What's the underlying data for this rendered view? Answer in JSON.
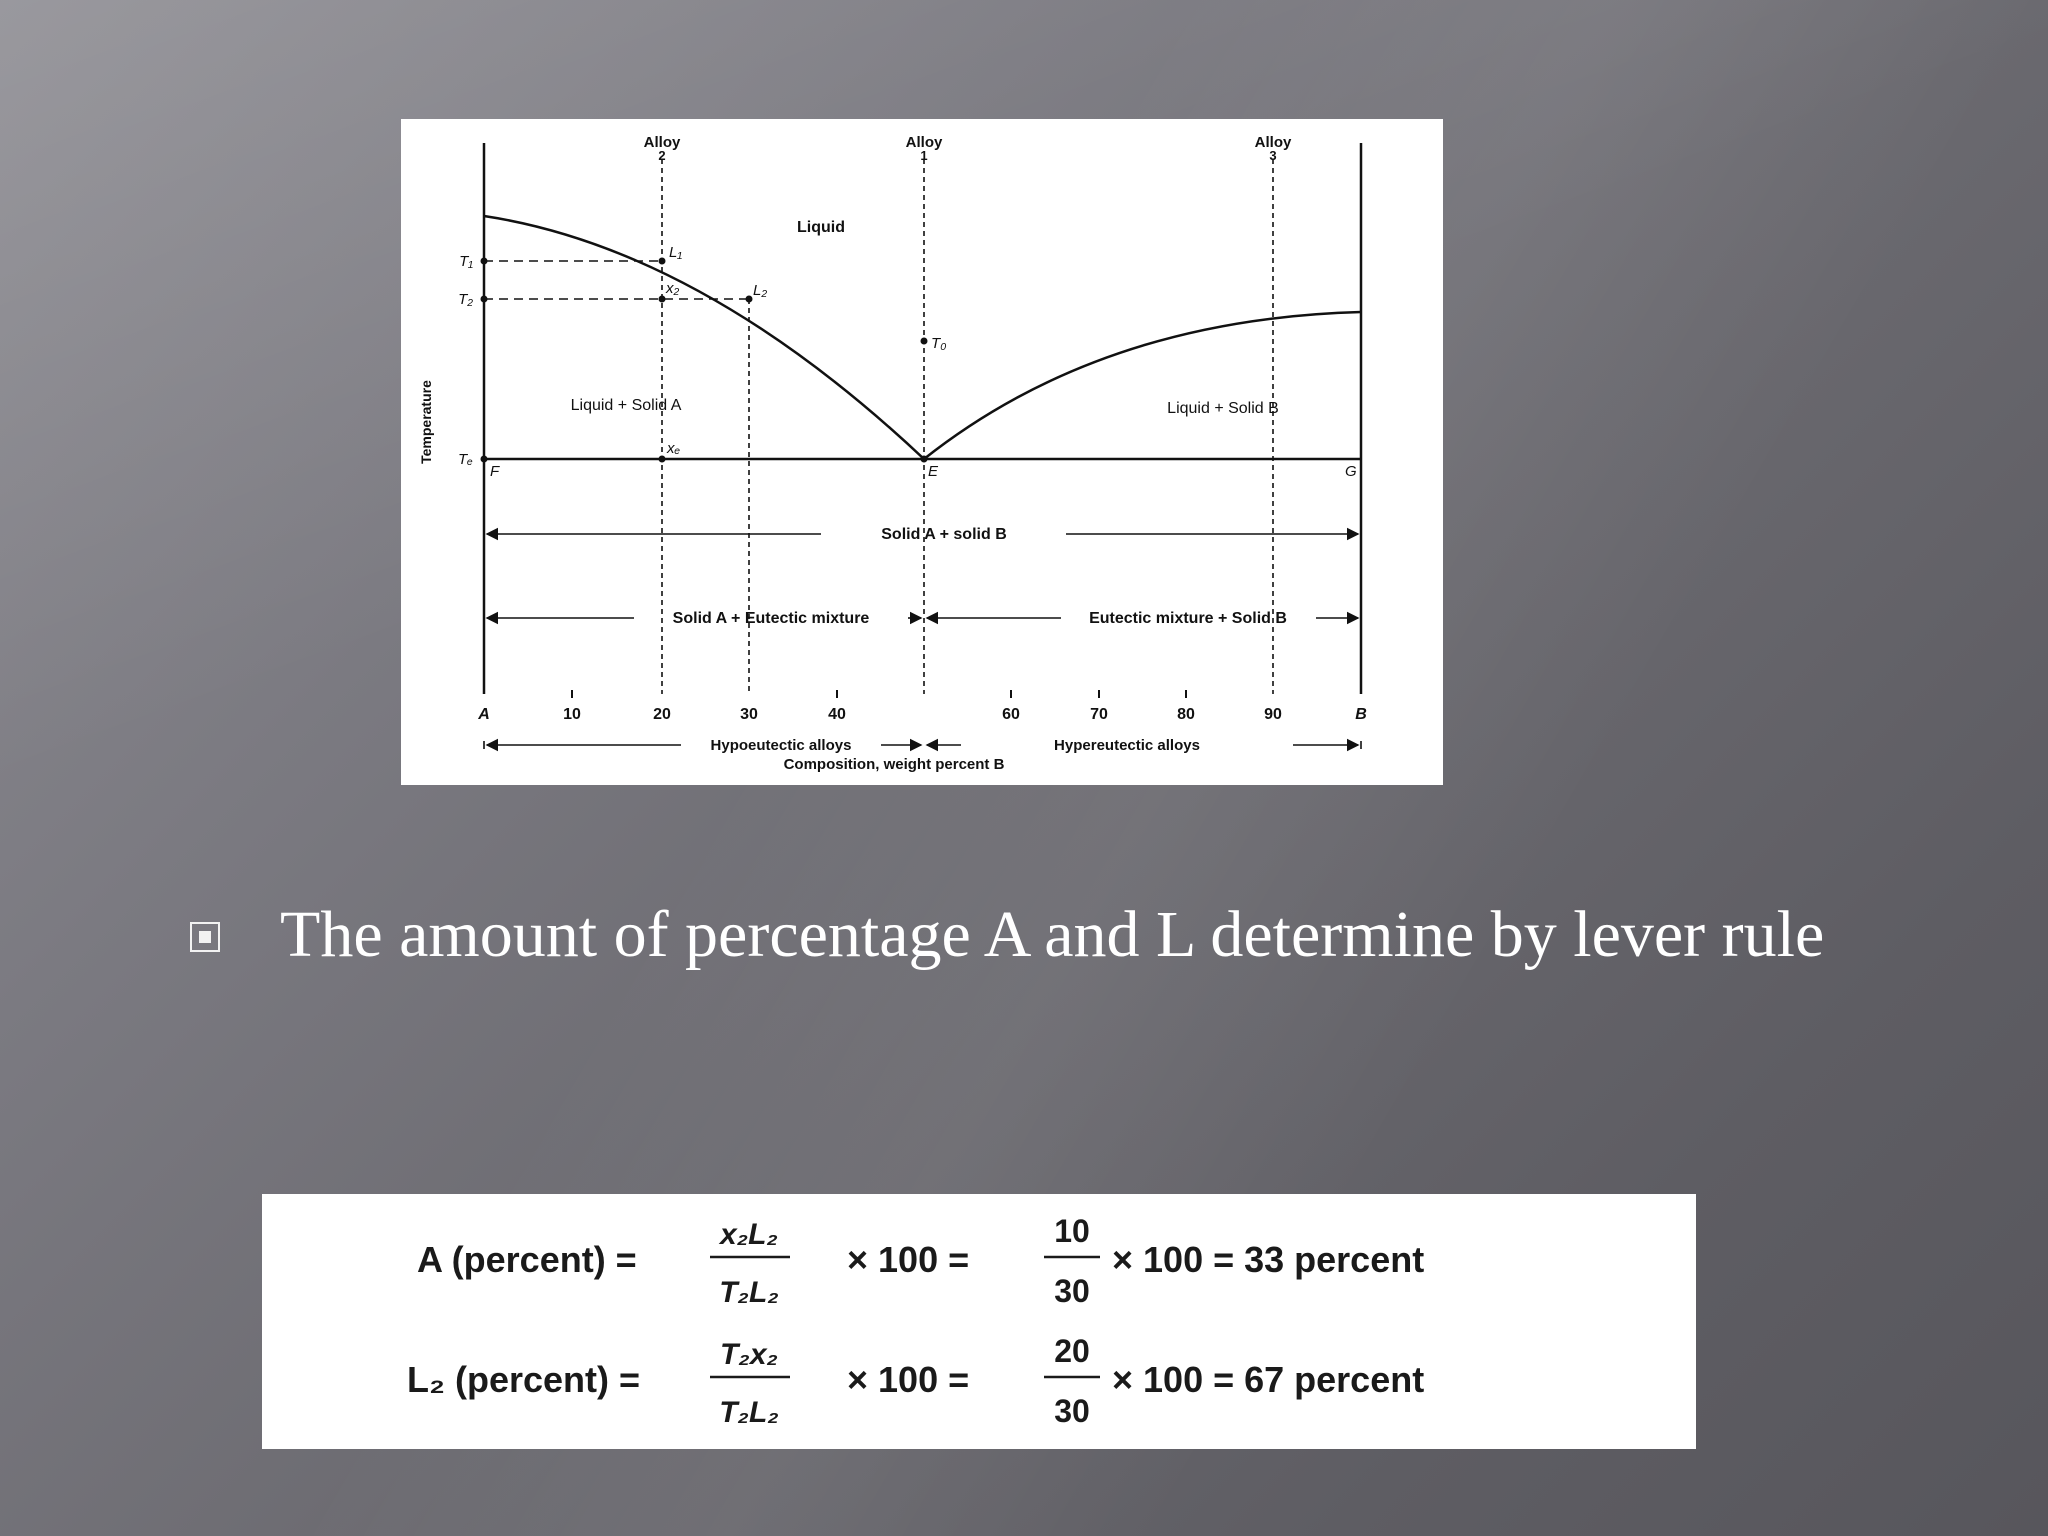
{
  "diagram": {
    "alloy_labels": [
      {
        "word": "Alloy",
        "num": "2"
      },
      {
        "word": "Alloy",
        "num": "1"
      },
      {
        "word": "Alloy",
        "num": "3"
      }
    ],
    "y_axis_label": "Temperature",
    "temp_labels": {
      "t1": "T₁",
      "t2": "T₂",
      "te": "Tₑ"
    },
    "region_labels": {
      "liquid": "Liquid",
      "liquid_solid_a": "Liquid + Solid A",
      "liquid_solid_b": "Liquid + Solid B",
      "solid_a_solid_b": "Solid A + solid B",
      "solid_a_eutectic": "Solid A + Eutectic mixture",
      "eutectic_solid_b": "Eutectic mixture + Solid B"
    },
    "point_labels": {
      "l1": "L₁",
      "x2": "x₂",
      "l2": "L₂",
      "to": "T₀",
      "xe": "xₑ",
      "f": "F",
      "e": "E",
      "g": "G"
    },
    "x_ticks": [
      "A",
      "10",
      "20",
      "30",
      "40",
      "60",
      "70",
      "80",
      "90",
      "B"
    ],
    "x_axis_label": "Composition, weight percent B",
    "hypo_label": "Hypoeutectic alloys",
    "hyper_label": "Hypereutectic alloys"
  },
  "bullet": {
    "text": "The amount of percentage A and L determine by lever rule"
  },
  "formulas": {
    "row1": {
      "lhs": "A (percent) =",
      "num": "x₂L₂",
      "den": "T₂L₂",
      "mult1": "× 100 =",
      "num2": "10",
      "den2": "30",
      "result": "× 100 = 33 percent"
    },
    "row2": {
      "lhs": "L₂ (percent) =",
      "num": "T₂x₂",
      "den": "T₂L₂",
      "mult1": "× 100 =",
      "num2": "20",
      "den2": "30",
      "result": "× 100 = 67 percent"
    }
  }
}
